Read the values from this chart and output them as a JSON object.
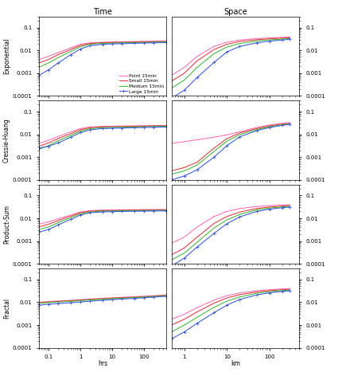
{
  "title_left": "Time",
  "title_right": "Space",
  "xlabel_left": "hrs",
  "xlabel_right": "km",
  "row_labels": [
    "Exponential",
    "Cressie-Huang",
    "Product-Sum",
    "Fractal"
  ],
  "legend_labels": [
    "Point 15min",
    "Small 15min",
    "Medium 15min",
    "Large 15min"
  ],
  "colors": [
    "#ff69b4",
    "#ee3333",
    "#33bb33",
    "#3355ee"
  ],
  "background": "#ffffff",
  "time_curves": {
    "Exponential": {
      "Point": {
        "x": [
          0.05,
          0.1,
          0.2,
          0.5,
          1,
          2,
          5,
          10,
          20,
          50,
          100,
          200,
          500
        ],
        "y": [
          0.004,
          0.0055,
          0.008,
          0.013,
          0.0185,
          0.0215,
          0.023,
          0.0235,
          0.024,
          0.0245,
          0.025,
          0.0255,
          0.026
        ]
      },
      "Small": {
        "x": [
          0.05,
          0.1,
          0.2,
          0.5,
          1,
          2,
          5,
          10,
          20,
          50,
          100,
          200,
          500
        ],
        "y": [
          0.0028,
          0.004,
          0.0065,
          0.011,
          0.0165,
          0.02,
          0.0218,
          0.0222,
          0.0228,
          0.0233,
          0.0238,
          0.0242,
          0.0248
        ]
      },
      "Medium": {
        "x": [
          0.05,
          0.1,
          0.2,
          0.5,
          1,
          2,
          5,
          10,
          20,
          50,
          100,
          200,
          500
        ],
        "y": [
          0.0018,
          0.0028,
          0.0048,
          0.009,
          0.0145,
          0.0185,
          0.0205,
          0.021,
          0.0215,
          0.022,
          0.0226,
          0.023,
          0.0236
        ]
      },
      "Large": {
        "x": [
          0.05,
          0.1,
          0.2,
          0.5,
          1,
          2,
          5,
          10,
          20,
          50,
          100,
          200,
          500
        ],
        "y": [
          0.0008,
          0.0014,
          0.0028,
          0.0065,
          0.0115,
          0.016,
          0.0185,
          0.0192,
          0.0198,
          0.0205,
          0.021,
          0.0215,
          0.022
        ]
      }
    },
    "Cressie-Huang": {
      "Point": {
        "x": [
          0.05,
          0.1,
          0.2,
          0.5,
          1,
          2,
          5,
          10,
          20,
          50,
          100,
          200,
          500
        ],
        "y": [
          0.004,
          0.0055,
          0.008,
          0.013,
          0.018,
          0.021,
          0.0225,
          0.0228,
          0.0232,
          0.0236,
          0.024,
          0.0244,
          0.0248
        ]
      },
      "Small": {
        "x": [
          0.05,
          0.1,
          0.2,
          0.5,
          1,
          2,
          5,
          10,
          20,
          50,
          100,
          200,
          500
        ],
        "y": [
          0.003,
          0.0042,
          0.0065,
          0.0108,
          0.016,
          0.0195,
          0.0212,
          0.0216,
          0.022,
          0.0225,
          0.023,
          0.0234,
          0.0238
        ]
      },
      "Medium": {
        "x": [
          0.05,
          0.1,
          0.2,
          0.5,
          1,
          2,
          5,
          10,
          20,
          50,
          100,
          200,
          500
        ],
        "y": [
          0.0022,
          0.0032,
          0.0052,
          0.009,
          0.014,
          0.0178,
          0.0198,
          0.0202,
          0.0207,
          0.0212,
          0.0217,
          0.0222,
          0.0227
        ]
      },
      "Large": {
        "x": [
          0.05,
          0.1,
          0.2,
          0.5,
          1,
          2,
          5,
          10,
          20,
          50,
          100,
          200,
          500
        ],
        "y": [
          0.0025,
          0.003,
          0.0042,
          0.0075,
          0.012,
          0.0158,
          0.018,
          0.0185,
          0.019,
          0.0196,
          0.02,
          0.0205,
          0.021
        ]
      }
    },
    "Product-Sum": {
      "Point": {
        "x": [
          0.05,
          0.1,
          0.2,
          0.5,
          1,
          2,
          5,
          10,
          20,
          50,
          100,
          200,
          500
        ],
        "y": [
          0.0055,
          0.007,
          0.0095,
          0.014,
          0.019,
          0.0218,
          0.023,
          0.0233,
          0.0236,
          0.0239,
          0.0242,
          0.0244,
          0.0246
        ]
      },
      "Small": {
        "x": [
          0.05,
          0.1,
          0.2,
          0.5,
          1,
          2,
          5,
          10,
          20,
          50,
          100,
          200,
          500
        ],
        "y": [
          0.0042,
          0.0055,
          0.008,
          0.0125,
          0.0175,
          0.0205,
          0.0218,
          0.0222,
          0.0225,
          0.0228,
          0.0231,
          0.0233,
          0.0235
        ]
      },
      "Medium": {
        "x": [
          0.05,
          0.1,
          0.2,
          0.5,
          1,
          2,
          5,
          10,
          20,
          50,
          100,
          200,
          500
        ],
        "y": [
          0.0032,
          0.0042,
          0.0065,
          0.0108,
          0.0158,
          0.0192,
          0.0207,
          0.0211,
          0.0215,
          0.0218,
          0.0221,
          0.0223,
          0.0225
        ]
      },
      "Large": {
        "x": [
          0.05,
          0.1,
          0.2,
          0.5,
          1,
          2,
          5,
          10,
          20,
          50,
          100,
          200,
          500
        ],
        "y": [
          0.0025,
          0.0032,
          0.0052,
          0.009,
          0.014,
          0.0175,
          0.0192,
          0.0196,
          0.02,
          0.0204,
          0.0207,
          0.0209,
          0.0211
        ]
      }
    },
    "Fractal": {
      "Point": {
        "x": [
          0.05,
          0.1,
          0.2,
          0.5,
          1,
          2,
          5,
          10,
          20,
          50,
          100,
          200,
          500
        ],
        "y": [
          0.01,
          0.0108,
          0.0115,
          0.0122,
          0.013,
          0.014,
          0.015,
          0.0158,
          0.0165,
          0.0175,
          0.0184,
          0.0194,
          0.021
        ]
      },
      "Small": {
        "x": [
          0.05,
          0.1,
          0.2,
          0.5,
          1,
          2,
          5,
          10,
          20,
          50,
          100,
          200,
          500
        ],
        "y": [
          0.0095,
          0.0102,
          0.0108,
          0.0116,
          0.0124,
          0.0133,
          0.0143,
          0.0151,
          0.0158,
          0.0168,
          0.0177,
          0.0187,
          0.0203
        ]
      },
      "Medium": {
        "x": [
          0.05,
          0.1,
          0.2,
          0.5,
          1,
          2,
          5,
          10,
          20,
          50,
          100,
          200,
          500
        ],
        "y": [
          0.009,
          0.0097,
          0.0103,
          0.011,
          0.0118,
          0.0127,
          0.0136,
          0.0144,
          0.0151,
          0.0161,
          0.017,
          0.018,
          0.0196
        ]
      },
      "Large": {
        "x": [
          0.05,
          0.1,
          0.2,
          0.5,
          1,
          2,
          5,
          10,
          20,
          50,
          100,
          200,
          500
        ],
        "y": [
          0.0075,
          0.0082,
          0.0088,
          0.0095,
          0.0103,
          0.0112,
          0.0122,
          0.013,
          0.0138,
          0.0148,
          0.0158,
          0.0168,
          0.0185
        ]
      }
    }
  },
  "space_curves": {
    "Exponential": {
      "Point": {
        "x": [
          0.5,
          1,
          2,
          5,
          10,
          20,
          50,
          100,
          200,
          300
        ],
        "y": [
          0.0008,
          0.0018,
          0.0055,
          0.015,
          0.023,
          0.0285,
          0.033,
          0.0355,
          0.0375,
          0.0385
        ]
      },
      "Small": {
        "x": [
          0.5,
          1,
          2,
          5,
          10,
          20,
          50,
          100,
          200,
          300
        ],
        "y": [
          0.00045,
          0.001,
          0.0035,
          0.011,
          0.0185,
          0.0245,
          0.0295,
          0.0322,
          0.0345,
          0.0358
        ]
      },
      "Medium": {
        "x": [
          0.5,
          1,
          2,
          5,
          10,
          20,
          50,
          100,
          200,
          300
        ],
        "y": [
          0.00022,
          0.0005,
          0.0018,
          0.0072,
          0.014,
          0.02,
          0.0258,
          0.029,
          0.0315,
          0.033
        ]
      },
      "Large": {
        "x": [
          0.5,
          1,
          2,
          5,
          10,
          20,
          50,
          100,
          200,
          300
        ],
        "y": [
          8e-05,
          0.00018,
          0.00065,
          0.003,
          0.0085,
          0.015,
          0.0215,
          0.0255,
          0.0285,
          0.0305
        ]
      }
    },
    "Cressie-Huang": {
      "Point": {
        "x": [
          0.5,
          1,
          2,
          5,
          10,
          20,
          50,
          100,
          200,
          300
        ],
        "y": [
          0.004,
          0.0048,
          0.0058,
          0.0075,
          0.0095,
          0.013,
          0.02,
          0.0258,
          0.0305,
          0.033
        ]
      },
      "Small": {
        "x": [
          0.5,
          1,
          2,
          5,
          10,
          20,
          50,
          100,
          200,
          300
        ],
        "y": [
          0.00025,
          0.00035,
          0.0006,
          0.0025,
          0.0065,
          0.0115,
          0.018,
          0.0235,
          0.0282,
          0.0305
        ]
      },
      "Medium": {
        "x": [
          0.5,
          1,
          2,
          5,
          10,
          20,
          50,
          100,
          200,
          300
        ],
        "y": [
          0.00018,
          0.00025,
          0.00045,
          0.0018,
          0.005,
          0.0098,
          0.0162,
          0.0218,
          0.0265,
          0.029
        ]
      },
      "Large": {
        "x": [
          0.5,
          1,
          2,
          5,
          10,
          20,
          50,
          100,
          200,
          300
        ],
        "y": [
          0.0001,
          0.00015,
          0.00028,
          0.001,
          0.0032,
          0.0078,
          0.0145,
          0.02,
          0.0248,
          0.0272
        ]
      }
    },
    "Product-Sum": {
      "Point": {
        "x": [
          0.5,
          1,
          2,
          5,
          10,
          20,
          50,
          100,
          200,
          300
        ],
        "y": [
          0.0008,
          0.0015,
          0.0042,
          0.012,
          0.02,
          0.0268,
          0.033,
          0.0362,
          0.0385,
          0.0398
        ]
      },
      "Small": {
        "x": [
          0.5,
          1,
          2,
          5,
          10,
          20,
          50,
          100,
          200,
          300
        ],
        "y": [
          0.00025,
          0.0005,
          0.0015,
          0.006,
          0.012,
          0.0188,
          0.027,
          0.0312,
          0.0345,
          0.0362
        ]
      },
      "Medium": {
        "x": [
          0.5,
          1,
          2,
          5,
          10,
          20,
          50,
          100,
          200,
          300
        ],
        "y": [
          0.00015,
          0.0003,
          0.0009,
          0.0038,
          0.0085,
          0.0148,
          0.0235,
          0.0282,
          0.0318,
          0.0338
        ]
      },
      "Large": {
        "x": [
          0.5,
          1,
          2,
          5,
          10,
          20,
          50,
          100,
          200,
          300
        ],
        "y": [
          8e-05,
          0.00018,
          0.00055,
          0.0022,
          0.0058,
          0.0115,
          0.02,
          0.0252,
          0.0292,
          0.0315
        ]
      }
    },
    "Fractal": {
      "Point": {
        "x": [
          0.5,
          1,
          2,
          5,
          10,
          20,
          50,
          100,
          200,
          300
        ],
        "y": [
          0.0018,
          0.003,
          0.0058,
          0.0125,
          0.0195,
          0.0255,
          0.032,
          0.0358,
          0.0385,
          0.04
        ]
      },
      "Small": {
        "x": [
          0.5,
          1,
          2,
          5,
          10,
          20,
          50,
          100,
          200,
          300
        ],
        "y": [
          0.001,
          0.0018,
          0.0038,
          0.0092,
          0.0155,
          0.0215,
          0.0285,
          0.0325,
          0.0355,
          0.037
        ]
      },
      "Medium": {
        "x": [
          0.5,
          1,
          2,
          5,
          10,
          20,
          50,
          100,
          200,
          300
        ],
        "y": [
          0.0005,
          0.001,
          0.0022,
          0.006,
          0.0112,
          0.0172,
          0.0248,
          0.0292,
          0.0328,
          0.0345
        ]
      },
      "Large": {
        "x": [
          0.5,
          1,
          2,
          5,
          10,
          20,
          50,
          100,
          200,
          300
        ],
        "y": [
          0.00025,
          0.0005,
          0.0012,
          0.0035,
          0.0075,
          0.0132,
          0.021,
          0.026,
          0.03,
          0.032
        ]
      }
    }
  }
}
